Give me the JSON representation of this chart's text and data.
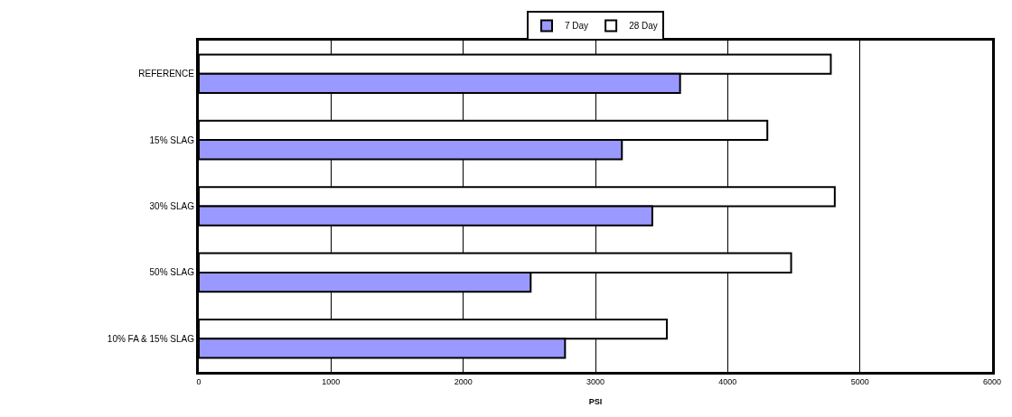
{
  "chart_data": {
    "type": "bar",
    "orientation": "horizontal",
    "xlabel": "PSI",
    "categories": [
      "REFERENCE",
      "15% SLAG",
      "30% SLAG",
      "50% SLAG",
      "10% FA & 15% SLAG"
    ],
    "series": [
      {
        "name": "7 Day",
        "color": "#9999ff",
        "values": [
          3640,
          3200,
          3430,
          2510,
          2770
        ]
      },
      {
        "name": "28 Day",
        "color": "#ffffff",
        "values": [
          4780,
          4300,
          4810,
          4480,
          3540
        ]
      }
    ],
    "xlim": [
      0,
      6000
    ],
    "xticks": [
      0,
      1000,
      2000,
      3000,
      4000,
      5000,
      6000
    ],
    "grid": "x",
    "legend": "top"
  }
}
